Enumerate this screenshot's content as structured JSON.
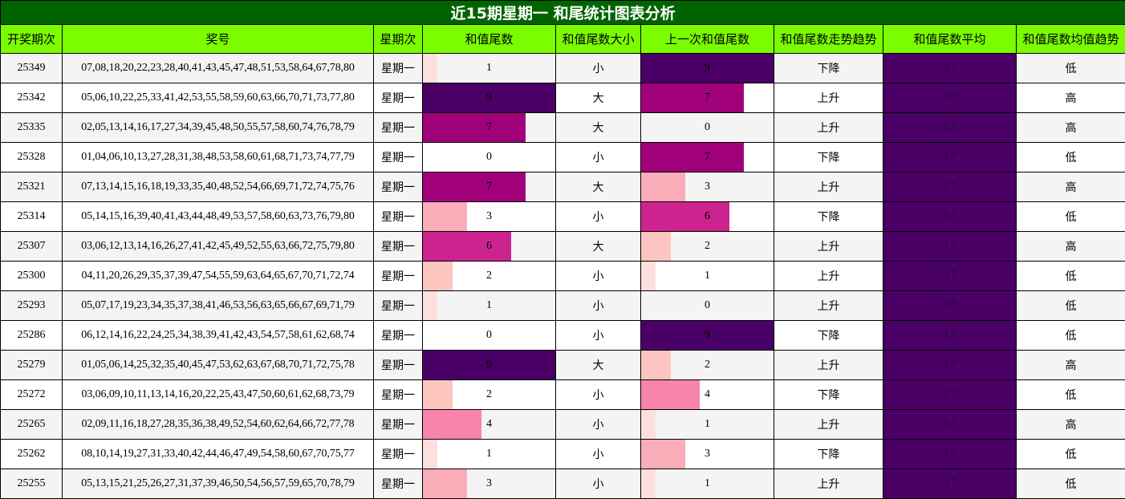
{
  "title": "近15期星期一 和尾统计图表分析",
  "columns": [
    "开奖期次",
    "奖号",
    "星期次",
    "和值尾数",
    "和值尾数大小",
    "上一次和值尾数",
    "和值尾数走势趋势",
    "和值尾数平均",
    "和值尾数均值趋势"
  ],
  "colors": {
    "title_bg": "#006400",
    "header_bg": "#7cfc00",
    "avg_bg": "#4b0066",
    "bar_scale": {
      "1": "#fde0dd",
      "2": "#fcc5c0",
      "3": "#fbacb9",
      "4": "#f784aa",
      "6": "#cd238e",
      "7": "#a0017a",
      "9": "#4a0066"
    }
  },
  "rows": [
    {
      "issue": "25349",
      "numbers": "07,08,18,20,22,23,28,40,41,43,45,47,48,51,53,58,64,67,78,80",
      "weekday": "星期一",
      "tail": "1",
      "size": "小",
      "prev_tail": "9",
      "trend": "下降",
      "avg": "3.7",
      "avg_trend": "低"
    },
    {
      "issue": "25342",
      "numbers": "05,06,10,22,25,33,41,42,53,55,58,59,60,63,66,70,71,73,77,80",
      "weekday": "星期一",
      "tail": "9",
      "size": "大",
      "prev_tail": "7",
      "trend": "上升",
      "avg": "3.7",
      "avg_trend": "高"
    },
    {
      "issue": "25335",
      "numbers": "02,05,13,14,16,17,27,34,39,45,48,50,55,57,58,60,74,76,78,79",
      "weekday": "星期一",
      "tail": "7",
      "size": "大",
      "prev_tail": "0",
      "trend": "上升",
      "avg": "3.7",
      "avg_trend": "高"
    },
    {
      "issue": "25328",
      "numbers": "01,04,06,10,13,27,28,31,38,48,53,58,60,61,68,71,73,74,77,79",
      "weekday": "星期一",
      "tail": "0",
      "size": "小",
      "prev_tail": "7",
      "trend": "下降",
      "avg": "3.7",
      "avg_trend": "低"
    },
    {
      "issue": "25321",
      "numbers": "07,13,14,15,16,18,19,33,35,40,48,52,54,66,69,71,72,74,75,76",
      "weekday": "星期一",
      "tail": "7",
      "size": "大",
      "prev_tail": "3",
      "trend": "上升",
      "avg": "3.7",
      "avg_trend": "高"
    },
    {
      "issue": "25314",
      "numbers": "05,14,15,16,39,40,41,43,44,48,49,53,57,58,60,63,73,76,79,80",
      "weekday": "星期一",
      "tail": "3",
      "size": "小",
      "prev_tail": "6",
      "trend": "下降",
      "avg": "3.7",
      "avg_trend": "低"
    },
    {
      "issue": "25307",
      "numbers": "03,06,12,13,14,16,26,27,41,42,45,49,52,55,63,66,72,75,79,80",
      "weekday": "星期一",
      "tail": "6",
      "size": "大",
      "prev_tail": "2",
      "trend": "上升",
      "avg": "3.7",
      "avg_trend": "高"
    },
    {
      "issue": "25300",
      "numbers": "04,11,20,26,29,35,37,39,47,54,55,59,63,64,65,67,70,71,72,74",
      "weekday": "星期一",
      "tail": "2",
      "size": "小",
      "prev_tail": "1",
      "trend": "上升",
      "avg": "3.7",
      "avg_trend": "低"
    },
    {
      "issue": "25293",
      "numbers": "05,07,17,19,23,34,35,37,38,41,46,53,56,63,65,66,67,69,71,79",
      "weekday": "星期一",
      "tail": "1",
      "size": "小",
      "prev_tail": "0",
      "trend": "上升",
      "avg": "3.7",
      "avg_trend": "低"
    },
    {
      "issue": "25286",
      "numbers": "06,12,14,16,22,24,25,34,38,39,41,42,43,54,57,58,61,62,68,74",
      "weekday": "星期一",
      "tail": "0",
      "size": "小",
      "prev_tail": "9",
      "trend": "下降",
      "avg": "3.7",
      "avg_trend": "低"
    },
    {
      "issue": "25279",
      "numbers": "01,05,06,14,25,32,35,40,45,47,53,62,63,67,68,70,71,72,75,78",
      "weekday": "星期一",
      "tail": "9",
      "size": "大",
      "prev_tail": "2",
      "trend": "上升",
      "avg": "3.7",
      "avg_trend": "高"
    },
    {
      "issue": "25272",
      "numbers": "03,06,09,10,11,13,14,16,20,22,25,43,47,50,60,61,62,68,73,79",
      "weekday": "星期一",
      "tail": "2",
      "size": "小",
      "prev_tail": "4",
      "trend": "下降",
      "avg": "3.7",
      "avg_trend": "低"
    },
    {
      "issue": "25265",
      "numbers": "02,09,11,16,18,27,28,35,36,38,49,52,54,60,62,64,66,72,77,78",
      "weekday": "星期一",
      "tail": "4",
      "size": "小",
      "prev_tail": "1",
      "trend": "上升",
      "avg": "3.7",
      "avg_trend": "高"
    },
    {
      "issue": "25262",
      "numbers": "08,10,14,19,27,31,33,40,42,44,46,47,49,54,58,60,67,70,75,77",
      "weekday": "星期一",
      "tail": "1",
      "size": "小",
      "prev_tail": "3",
      "trend": "下降",
      "avg": "3.7",
      "avg_trend": "低"
    },
    {
      "issue": "25255",
      "numbers": "05,13,15,21,25,26,27,31,37,39,46,50,54,56,57,59,65,70,78,79",
      "weekday": "星期一",
      "tail": "3",
      "size": "小",
      "prev_tail": "1",
      "trend": "上升",
      "avg": "3.7",
      "avg_trend": "低"
    }
  ],
  "chart_data": {
    "type": "table",
    "title": "近15期星期一 和尾统计图表分析",
    "columns": [
      "开奖期次",
      "奖号",
      "星期次",
      "和值尾数",
      "和值尾数大小",
      "上一次和值尾数",
      "和值尾数走势趋势",
      "和值尾数平均",
      "和值尾数均值趋势"
    ],
    "categories": [
      "25349",
      "25342",
      "25335",
      "25328",
      "25321",
      "25314",
      "25307",
      "25300",
      "25293",
      "25286",
      "25279",
      "25272",
      "25265",
      "25262",
      "25255"
    ],
    "series": [
      {
        "name": "和值尾数",
        "values": [
          1,
          9,
          7,
          0,
          7,
          3,
          6,
          2,
          1,
          0,
          9,
          2,
          4,
          1,
          3
        ]
      },
      {
        "name": "上一次和值尾数",
        "values": [
          9,
          7,
          0,
          7,
          3,
          6,
          2,
          1,
          0,
          9,
          2,
          4,
          1,
          3,
          1
        ]
      },
      {
        "name": "和值尾数平均",
        "values": [
          3.7,
          3.7,
          3.7,
          3.7,
          3.7,
          3.7,
          3.7,
          3.7,
          3.7,
          3.7,
          3.7,
          3.7,
          3.7,
          3.7,
          3.7
        ]
      }
    ],
    "bar_max": 9
  }
}
